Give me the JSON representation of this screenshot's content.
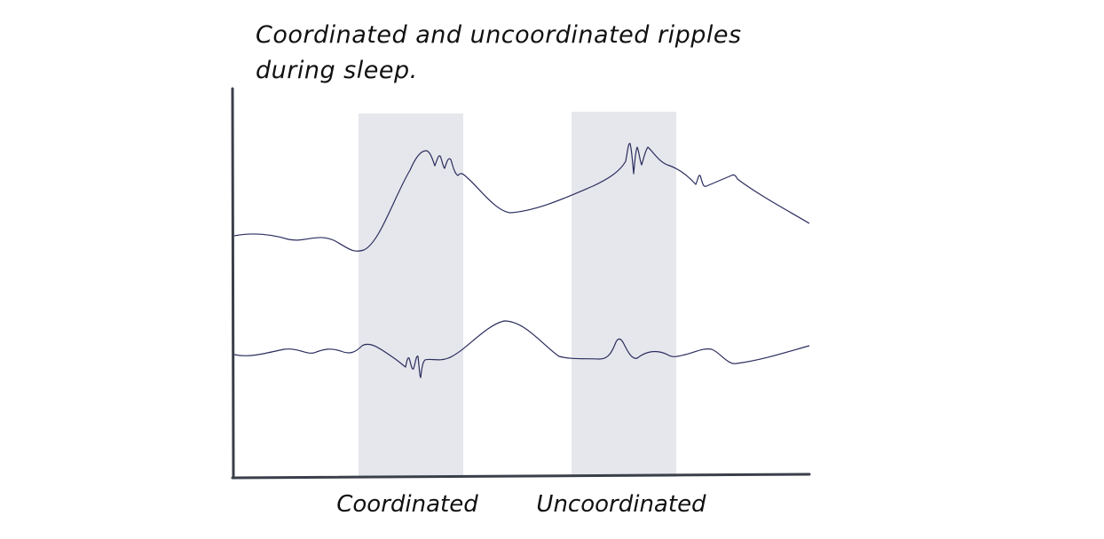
{
  "title": {
    "line1": "Coordinated and uncoordinated ripples",
    "line2": "during sleep."
  },
  "regions": [
    {
      "label": "Coordinated"
    },
    {
      "label": "Uncoordinated"
    }
  ],
  "colors": {
    "highlight": "#e6e7ec",
    "trace": "#2b2d5e",
    "axis": "#3a3f4a",
    "text": "#111111"
  }
}
